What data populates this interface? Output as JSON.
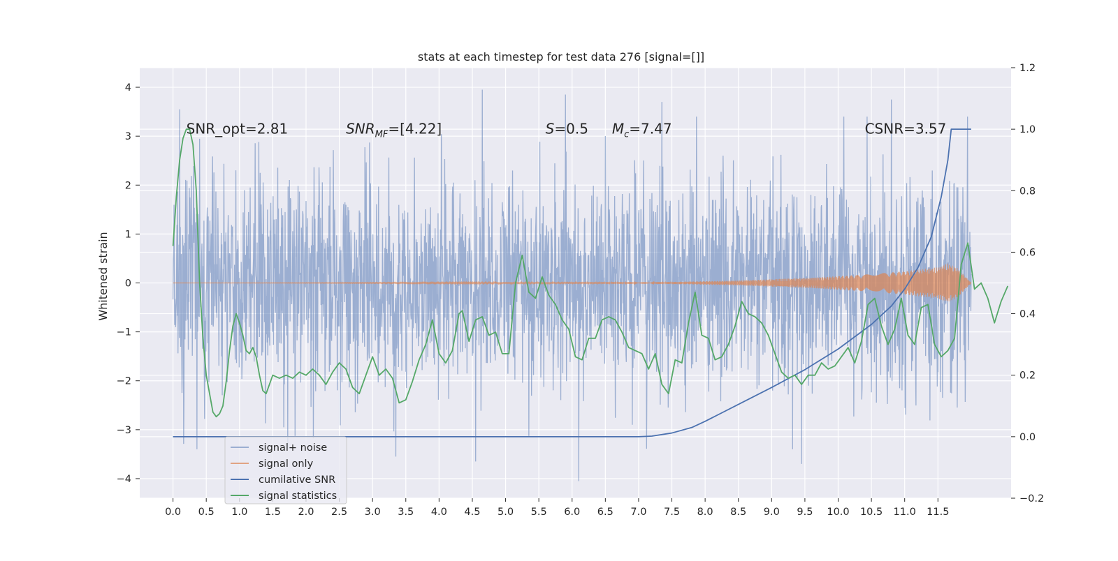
{
  "chart_data": {
    "type": "line",
    "title": "stats at each timestep for test data 276 [signal=[]]",
    "ylabel": "Whitened strain",
    "xlabel": "",
    "xlim": [
      -0.5,
      12.6
    ],
    "ylim": [
      -4.4,
      4.4
    ],
    "y2lim": [
      -0.2,
      1.2
    ],
    "grid": true,
    "legend_position": "lower-left",
    "x_tick_labels": [
      "0.0",
      "0.5",
      "1.0",
      "1.5",
      "2.0",
      "2.5",
      "3.0",
      "3.5",
      "4.0",
      "4.5",
      "5.0",
      "5.5",
      "6.0",
      "6.5",
      "7.0",
      "7.5",
      "8.0",
      "8.5",
      "9.0",
      "9.5",
      "10.0",
      "10.5",
      "11.0",
      "11.5"
    ],
    "y_tick_labels": [
      "−4",
      "−3",
      "−2",
      "−1",
      "0",
      "1",
      "2",
      "3",
      "4"
    ],
    "y2_tick_labels": [
      "−0.2",
      "0.0",
      "0.2",
      "0.4",
      "0.6",
      "0.8",
      "1.0",
      "1.2"
    ],
    "annotations": [
      {
        "text": "SNR_opt=2.81",
        "x": 0.2,
        "y": 3.15
      },
      {
        "text": "SNR_MF=[4.22]",
        "x": 2.6,
        "y": 3.15
      },
      {
        "text": "S=0.5",
        "x": 5.6,
        "y": 3.15
      },
      {
        "text": "M_c=7.47",
        "x": 6.6,
        "y": 3.15
      },
      {
        "text": "CSNR=3.57",
        "x": 10.4,
        "y": 3.15
      }
    ],
    "series": [
      {
        "name": "signal+ noise",
        "axis": "left",
        "color": "#4c72b0",
        "opacity": 0.5,
        "kind": "noise",
        "x_range": [
          0.0,
          12.0
        ],
        "std": 1.05,
        "typical_range": [
          -2.3,
          2.3
        ],
        "extremes": [
          {
            "x": 0.1,
            "y": 3.55
          },
          {
            "x": 4.65,
            "y": 3.95
          },
          {
            "x": 5.9,
            "y": 3.85
          },
          {
            "x": 6.1,
            "y": -4.05
          },
          {
            "x": 9.45,
            "y": -3.7
          },
          {
            "x": 4.55,
            "y": -3.65
          },
          {
            "x": 3.35,
            "y": -3.55
          },
          {
            "x": 10.8,
            "y": 3.75
          },
          {
            "x": 7.35,
            "y": 3.7
          }
        ]
      },
      {
        "name": "signal only",
        "axis": "left",
        "color": "#dd8452",
        "opacity": 0.7,
        "kind": "chirp",
        "x_range": [
          0.0,
          12.0
        ],
        "envelope_points": [
          [
            0.0,
            0.0
          ],
          [
            7.5,
            0.02
          ],
          [
            8.5,
            0.05
          ],
          [
            9.5,
            0.1
          ],
          [
            10.5,
            0.18
          ],
          [
            11.0,
            0.24
          ],
          [
            11.5,
            0.32
          ],
          [
            11.65,
            0.4
          ],
          [
            11.8,
            0.3
          ],
          [
            12.0,
            0.0
          ]
        ]
      },
      {
        "name": "cumilative SNR",
        "axis": "right",
        "color": "#4c72b0",
        "opacity": 1,
        "points": [
          [
            0.0,
            0.0
          ],
          [
            7.0,
            0.0
          ],
          [
            7.2,
            0.002
          ],
          [
            7.5,
            0.012
          ],
          [
            7.8,
            0.03
          ],
          [
            8.0,
            0.05
          ],
          [
            8.2,
            0.072
          ],
          [
            8.5,
            0.105
          ],
          [
            9.0,
            0.16
          ],
          [
            9.5,
            0.218
          ],
          [
            10.0,
            0.285
          ],
          [
            10.5,
            0.365
          ],
          [
            10.8,
            0.425
          ],
          [
            11.0,
            0.48
          ],
          [
            11.2,
            0.55
          ],
          [
            11.4,
            0.65
          ],
          [
            11.55,
            0.78
          ],
          [
            11.65,
            0.9
          ],
          [
            11.7,
            1.0
          ],
          [
            12.0,
            1.0
          ]
        ]
      },
      {
        "name": "signal statistics",
        "axis": "right",
        "color": "#55a868",
        "opacity": 1,
        "points": [
          [
            0.0,
            0.62
          ],
          [
            0.05,
            0.78
          ],
          [
            0.1,
            0.9
          ],
          [
            0.15,
            0.97
          ],
          [
            0.2,
            1.0
          ],
          [
            0.25,
            1.0
          ],
          [
            0.3,
            0.95
          ],
          [
            0.35,
            0.8
          ],
          [
            0.4,
            0.5
          ],
          [
            0.45,
            0.32
          ],
          [
            0.5,
            0.2
          ],
          [
            0.55,
            0.14
          ],
          [
            0.6,
            0.08
          ],
          [
            0.65,
            0.065
          ],
          [
            0.7,
            0.075
          ],
          [
            0.75,
            0.1
          ],
          [
            0.8,
            0.18
          ],
          [
            0.85,
            0.28
          ],
          [
            0.9,
            0.36
          ],
          [
            0.95,
            0.4
          ],
          [
            1.0,
            0.37
          ],
          [
            1.05,
            0.33
          ],
          [
            1.1,
            0.28
          ],
          [
            1.15,
            0.27
          ],
          [
            1.2,
            0.29
          ],
          [
            1.25,
            0.26
          ],
          [
            1.3,
            0.2
          ],
          [
            1.35,
            0.15
          ],
          [
            1.4,
            0.14
          ],
          [
            1.45,
            0.17
          ],
          [
            1.5,
            0.2
          ],
          [
            1.6,
            0.19
          ],
          [
            1.7,
            0.2
          ],
          [
            1.8,
            0.19
          ],
          [
            1.9,
            0.21
          ],
          [
            2.0,
            0.2
          ],
          [
            2.1,
            0.22
          ],
          [
            2.2,
            0.2
          ],
          [
            2.3,
            0.17
          ],
          [
            2.4,
            0.21
          ],
          [
            2.5,
            0.24
          ],
          [
            2.6,
            0.22
          ],
          [
            2.7,
            0.16
          ],
          [
            2.8,
            0.14
          ],
          [
            2.9,
            0.2
          ],
          [
            3.0,
            0.26
          ],
          [
            3.1,
            0.2
          ],
          [
            3.2,
            0.22
          ],
          [
            3.3,
            0.19
          ],
          [
            3.4,
            0.11
          ],
          [
            3.5,
            0.12
          ],
          [
            3.6,
            0.18
          ],
          [
            3.7,
            0.25
          ],
          [
            3.8,
            0.3
          ],
          [
            3.9,
            0.38
          ],
          [
            4.0,
            0.27
          ],
          [
            4.1,
            0.24
          ],
          [
            4.2,
            0.28
          ],
          [
            4.3,
            0.4
          ],
          [
            4.35,
            0.41
          ],
          [
            4.45,
            0.31
          ],
          [
            4.55,
            0.38
          ],
          [
            4.65,
            0.39
          ],
          [
            4.75,
            0.33
          ],
          [
            4.85,
            0.34
          ],
          [
            4.95,
            0.27
          ],
          [
            5.05,
            0.27
          ],
          [
            5.15,
            0.5
          ],
          [
            5.25,
            0.59
          ],
          [
            5.35,
            0.47
          ],
          [
            5.45,
            0.45
          ],
          [
            5.55,
            0.52
          ],
          [
            5.65,
            0.46
          ],
          [
            5.75,
            0.43
          ],
          [
            5.85,
            0.38
          ],
          [
            5.95,
            0.35
          ],
          [
            6.05,
            0.26
          ],
          [
            6.15,
            0.25
          ],
          [
            6.25,
            0.32
          ],
          [
            6.35,
            0.32
          ],
          [
            6.45,
            0.38
          ],
          [
            6.55,
            0.39
          ],
          [
            6.65,
            0.38
          ],
          [
            6.75,
            0.34
          ],
          [
            6.85,
            0.29
          ],
          [
            6.95,
            0.28
          ],
          [
            7.05,
            0.27
          ],
          [
            7.15,
            0.22
          ],
          [
            7.25,
            0.27
          ],
          [
            7.35,
            0.17
          ],
          [
            7.45,
            0.14
          ],
          [
            7.55,
            0.25
          ],
          [
            7.65,
            0.24
          ],
          [
            7.75,
            0.37
          ],
          [
            7.85,
            0.47
          ],
          [
            7.95,
            0.33
          ],
          [
            8.05,
            0.32
          ],
          [
            8.15,
            0.25
          ],
          [
            8.25,
            0.26
          ],
          [
            8.35,
            0.3
          ],
          [
            8.45,
            0.36
          ],
          [
            8.55,
            0.44
          ],
          [
            8.65,
            0.4
          ],
          [
            8.75,
            0.39
          ],
          [
            8.85,
            0.37
          ],
          [
            8.95,
            0.33
          ],
          [
            9.05,
            0.27
          ],
          [
            9.15,
            0.21
          ],
          [
            9.25,
            0.19
          ],
          [
            9.35,
            0.2
          ],
          [
            9.45,
            0.17
          ],
          [
            9.55,
            0.2
          ],
          [
            9.65,
            0.2
          ],
          [
            9.75,
            0.24
          ],
          [
            9.85,
            0.22
          ],
          [
            9.95,
            0.23
          ],
          [
            10.05,
            0.26
          ],
          [
            10.15,
            0.29
          ],
          [
            10.25,
            0.24
          ],
          [
            10.35,
            0.31
          ],
          [
            10.45,
            0.43
          ],
          [
            10.55,
            0.45
          ],
          [
            10.65,
            0.36
          ],
          [
            10.75,
            0.3
          ],
          [
            10.85,
            0.35
          ],
          [
            10.95,
            0.45
          ],
          [
            11.05,
            0.33
          ],
          [
            11.15,
            0.3
          ],
          [
            11.25,
            0.42
          ],
          [
            11.35,
            0.43
          ],
          [
            11.45,
            0.3
          ],
          [
            11.55,
            0.26
          ],
          [
            11.65,
            0.28
          ],
          [
            11.75,
            0.32
          ],
          [
            11.85,
            0.56
          ],
          [
            11.95,
            0.63
          ],
          [
            12.05,
            0.48
          ],
          [
            12.15,
            0.5
          ],
          [
            12.25,
            0.45
          ],
          [
            12.35,
            0.37
          ],
          [
            12.45,
            0.44
          ],
          [
            12.55,
            0.49
          ]
        ]
      }
    ]
  }
}
